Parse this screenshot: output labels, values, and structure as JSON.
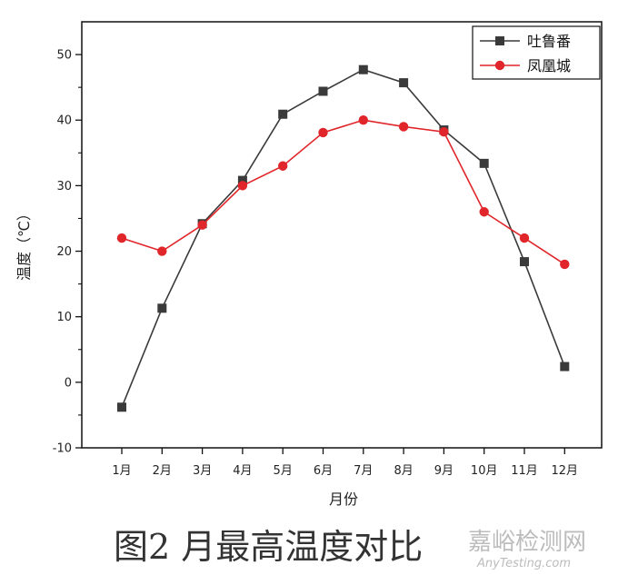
{
  "chart_data": {
    "type": "line",
    "title": "",
    "xlabel": "月份",
    "ylabel": "温度（℃）",
    "ylim": [
      -10,
      55
    ],
    "yticks": [
      -10,
      0,
      10,
      20,
      30,
      40,
      50
    ],
    "categories": [
      "1月",
      "2月",
      "3月",
      "4月",
      "5月",
      "6月",
      "7月",
      "8月",
      "9月",
      "10月",
      "11月",
      "12月"
    ],
    "series": [
      {
        "name": "吐鲁番",
        "color": "#3a3a3a",
        "marker": "square",
        "values": [
          -3.8,
          11.3,
          24.2,
          30.8,
          40.9,
          44.4,
          47.7,
          45.7,
          38.5,
          33.4,
          18.4,
          2.4
        ]
      },
      {
        "name": "凤凰城",
        "color": "#e0262a",
        "marker": "circle",
        "values": [
          22.0,
          20.0,
          24.0,
          30.0,
          33.0,
          38.1,
          40.0,
          39.0,
          38.2,
          26.0,
          22.0,
          18.0
        ]
      }
    ],
    "grid": false,
    "legend_position": "top-right"
  },
  "caption": "图2  月最高温度对比",
  "watermark": {
    "cn": "嘉峪检测网",
    "en": "AnyTesting.com"
  }
}
